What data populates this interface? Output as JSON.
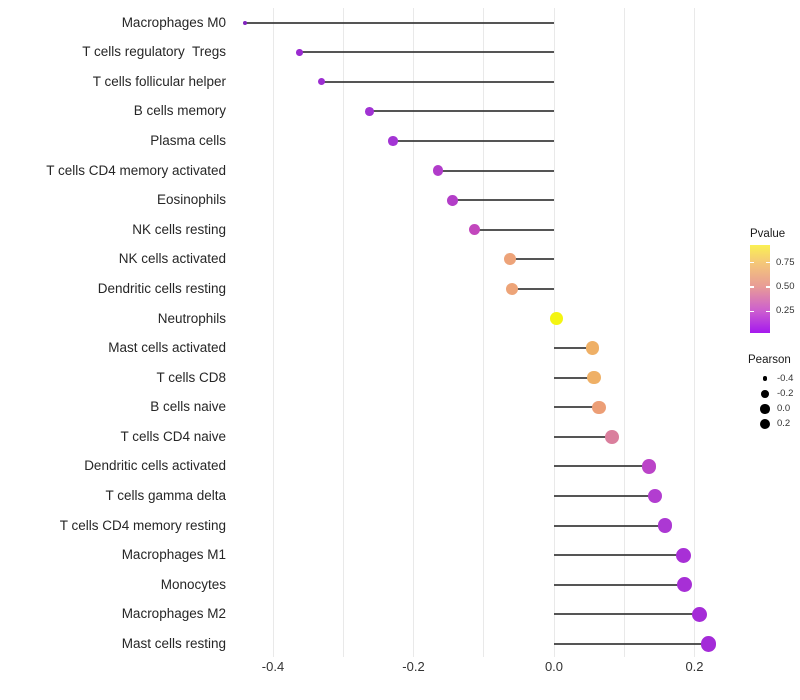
{
  "figure": {
    "background": "#ffffff"
  },
  "chart_data": {
    "type": "lollipop",
    "title": "",
    "xlabel": "",
    "ylabel": "",
    "grid": "on",
    "baseline_x": 0.0,
    "x_axis": {
      "ticks": [
        -0.4,
        -0.2,
        0.0,
        0.2
      ],
      "tick_labels": [
        "-0.4",
        "-0.2",
        "0.0",
        "0.2"
      ],
      "minor_ticks": [
        -0.3,
        -0.1,
        0.1
      ],
      "range": [
        -0.45,
        0.25
      ]
    },
    "rows": [
      {
        "label": "Macrophages M0",
        "pearson": -0.44,
        "dot_color": "#8224BE"
      },
      {
        "label": "T cells regulatory  Tregs",
        "pearson": -0.362,
        "dot_color": "#9A2BD0"
      },
      {
        "label": "T cells follicular helper",
        "pearson": -0.331,
        "dot_color": "#9C2ED1"
      },
      {
        "label": "B cells memory",
        "pearson": -0.263,
        "dot_color": "#A133D3"
      },
      {
        "label": "Plasma cells",
        "pearson": -0.229,
        "dot_color": "#A335D4"
      },
      {
        "label": "T cells CD4 memory activated",
        "pearson": -0.165,
        "dot_color": "#B13CCA"
      },
      {
        "label": "Eosinophils",
        "pearson": -0.144,
        "dot_color": "#B33EC8"
      },
      {
        "label": "NK cells resting",
        "pearson": -0.113,
        "dot_color": "#C247BD"
      },
      {
        "label": "NK cells activated",
        "pearson": -0.063,
        "dot_color": "#EDA379"
      },
      {
        "label": "Dendritic cells resting",
        "pearson": -0.06,
        "dot_color": "#EDA478"
      },
      {
        "label": "Neutrophils",
        "pearson": 0.003,
        "dot_color": "#F4F512"
      },
      {
        "label": "Mast cells activated",
        "pearson": 0.055,
        "dot_color": "#EFB066"
      },
      {
        "label": "T cells CD8",
        "pearson": 0.057,
        "dot_color": "#EFB066"
      },
      {
        "label": "B cells naive",
        "pearson": 0.064,
        "dot_color": "#EC9E76"
      },
      {
        "label": "T cells CD4 naive",
        "pearson": 0.083,
        "dot_color": "#DA7F9D"
      },
      {
        "label": "Dendritic cells activated",
        "pearson": 0.135,
        "dot_color": "#BB44C8"
      },
      {
        "label": "T cells gamma delta",
        "pearson": 0.144,
        "dot_color": "#B23DD0"
      },
      {
        "label": "T cells CD4 memory resting",
        "pearson": 0.158,
        "dot_color": "#AC38D3"
      },
      {
        "label": "Macrophages M1",
        "pearson": 0.184,
        "dot_color": "#A830D6"
      },
      {
        "label": "Monocytes",
        "pearson": 0.186,
        "dot_color": "#A72FD6"
      },
      {
        "label": "Macrophages M2",
        "pearson": 0.207,
        "dot_color": "#A52CD7"
      },
      {
        "label": "Mast cells resting",
        "pearson": 0.22,
        "dot_color": "#A42BD8"
      }
    ],
    "legends": {
      "pvalue": {
        "title": "Pvalue",
        "tick_labels": [
          "0.75",
          "0.50",
          "0.25"
        ],
        "tick_values": [
          0.75,
          0.5,
          0.25
        ],
        "bar_range": [
          0.03,
          0.93
        ],
        "gradient_top_to_bottom": [
          {
            "pos": 0,
            "color": "#FAF053"
          },
          {
            "pos": 0.2,
            "color": "#F5C878"
          },
          {
            "pos": 0.47,
            "color": "#E89C96"
          },
          {
            "pos": 0.74,
            "color": "#CD60CE"
          },
          {
            "pos": 1,
            "color": "#A519EE"
          }
        ]
      },
      "pearson": {
        "title": "Pearson",
        "entries": [
          {
            "label": "-0.4",
            "diameter": 4.7
          },
          {
            "label": "-0.2",
            "diameter": 7.7
          },
          {
            "label": "0.0",
            "diameter": 9.3
          },
          {
            "label": "0.2",
            "diameter": 10.3
          }
        ]
      }
    }
  }
}
